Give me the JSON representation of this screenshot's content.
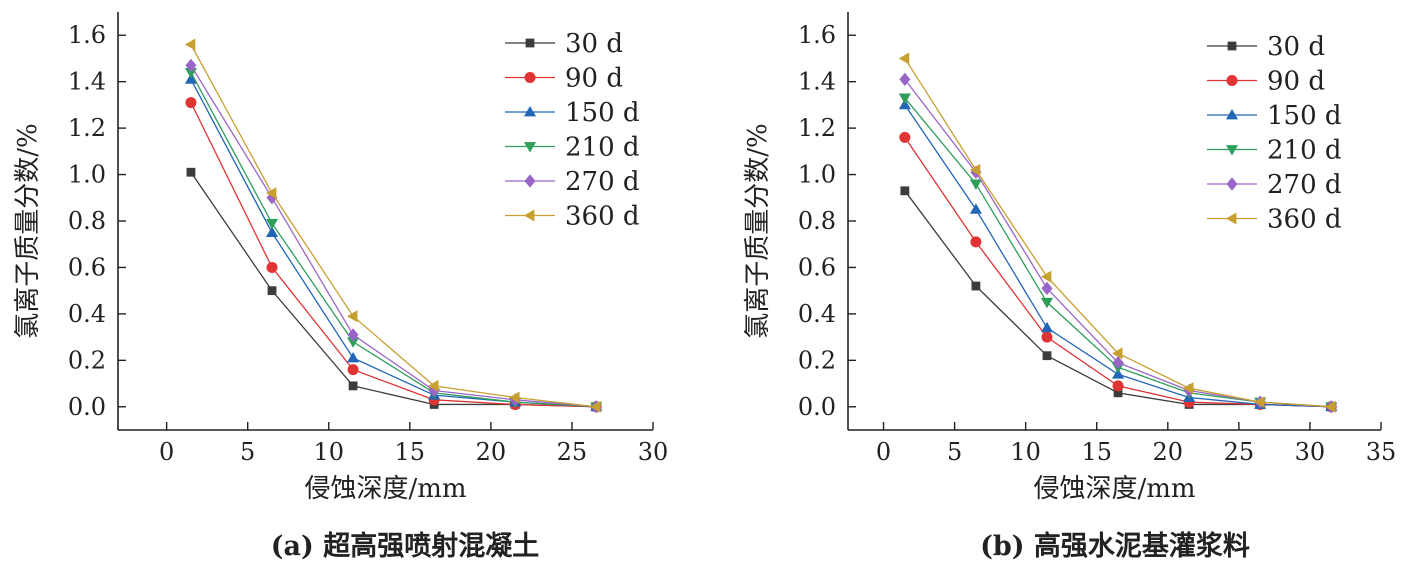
{
  "chart_data": [
    {
      "type": "line",
      "caption": "(a) 超高强喷射混凝土",
      "xlabel": "侵蚀深度/mm",
      "ylabel": "氯离子质量分数/%",
      "xlim": [
        -3,
        30
      ],
      "ylim": [
        -0.1,
        1.7
      ],
      "xticks": [
        0,
        5,
        10,
        15,
        20,
        25,
        30
      ],
      "yticks": [
        0.0,
        0.2,
        0.4,
        0.6,
        0.8,
        1.0,
        1.2,
        1.4,
        1.6
      ],
      "x": [
        1.5,
        6.5,
        11.5,
        16.5,
        21.5,
        26.5
      ],
      "legend_position": "top-right",
      "series": [
        {
          "name": "30 d",
          "marker": "square",
          "color": "#3c3c3c",
          "values": [
            1.01,
            0.5,
            0.09,
            0.01,
            0.01,
            0.0
          ]
        },
        {
          "name": "90 d",
          "marker": "circle",
          "color": "#e03434",
          "values": [
            1.31,
            0.6,
            0.16,
            0.03,
            0.01,
            0.0
          ]
        },
        {
          "name": "150 d",
          "marker": "triangle-up",
          "color": "#2266b8",
          "values": [
            1.41,
            0.75,
            0.21,
            0.05,
            0.02,
            0.0
          ]
        },
        {
          "name": "210 d",
          "marker": "triangle-down",
          "color": "#2e9e5a",
          "values": [
            1.44,
            0.79,
            0.28,
            0.06,
            0.02,
            0.0
          ]
        },
        {
          "name": "270 d",
          "marker": "diamond",
          "color": "#9966c8",
          "values": [
            1.47,
            0.9,
            0.31,
            0.07,
            0.03,
            0.0
          ]
        },
        {
          "name": "360 d",
          "marker": "triangle-left",
          "color": "#c8a030",
          "values": [
            1.56,
            0.92,
            0.39,
            0.09,
            0.04,
            0.0
          ]
        }
      ]
    },
    {
      "type": "line",
      "caption": "(b) 高强水泥基灌浆料",
      "xlabel": "侵蚀深度/mm",
      "ylabel": "氯离子质量分数/%",
      "xlim": [
        -2.5,
        35
      ],
      "ylim": [
        -0.1,
        1.7
      ],
      "xticks": [
        0,
        5,
        10,
        15,
        20,
        25,
        30,
        35
      ],
      "yticks": [
        0.0,
        0.2,
        0.4,
        0.6,
        0.8,
        1.0,
        1.2,
        1.4,
        1.6
      ],
      "x": [
        1.5,
        6.5,
        11.5,
        16.5,
        21.5,
        26.5,
        31.5
      ],
      "legend_position": "top-right",
      "series": [
        {
          "name": "30 d",
          "marker": "square",
          "color": "#3c3c3c",
          "values": [
            0.93,
            0.52,
            0.22,
            0.06,
            0.01,
            0.01,
            0.0
          ]
        },
        {
          "name": "90 d",
          "marker": "circle",
          "color": "#e03434",
          "values": [
            1.16,
            0.71,
            0.3,
            0.09,
            0.02,
            0.01,
            0.0
          ]
        },
        {
          "name": "150 d",
          "marker": "triangle-up",
          "color": "#2266b8",
          "values": [
            1.3,
            0.85,
            0.34,
            0.14,
            0.04,
            0.01,
            0.0
          ]
        },
        {
          "name": "210 d",
          "marker": "triangle-down",
          "color": "#2e9e5a",
          "values": [
            1.33,
            0.96,
            0.45,
            0.17,
            0.06,
            0.02,
            0.0
          ]
        },
        {
          "name": "270 d",
          "marker": "diamond",
          "color": "#9966c8",
          "values": [
            1.41,
            1.01,
            0.51,
            0.19,
            0.07,
            0.02,
            0.0
          ]
        },
        {
          "name": "360 d",
          "marker": "triangle-left",
          "color": "#c8a030",
          "values": [
            1.5,
            1.02,
            0.56,
            0.23,
            0.08,
            0.02,
            0.0
          ]
        }
      ]
    }
  ]
}
